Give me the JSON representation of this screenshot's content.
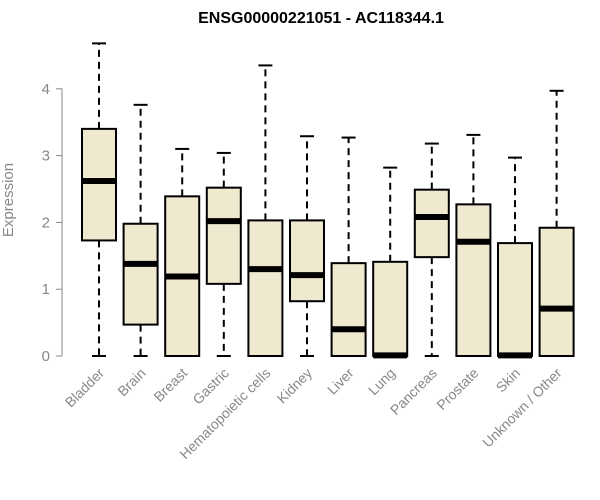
{
  "chart_data": {
    "type": "boxplot",
    "title": "ENSG00000221051 - AC118344.1",
    "xlabel": "",
    "ylabel": "Expression",
    "ylim": [
      0,
      4.75
    ],
    "yticks": [
      0,
      1,
      2,
      3,
      4
    ],
    "grid": false,
    "legend": "none",
    "colors": {
      "box_fill": "#efe9cf",
      "box_stroke": "#000000",
      "axis": "#888888"
    },
    "categories": [
      "Bladder",
      "Brain",
      "Breast",
      "Gastric",
      "Hematopoietic cells",
      "Kidney",
      "Liver",
      "Lung",
      "Pancreas",
      "Prostate",
      "Skin",
      "Unknown / Other"
    ],
    "boxes": [
      {
        "min": 0,
        "q1": 1.73,
        "median": 2.62,
        "q3": 3.4,
        "max": 4.68
      },
      {
        "min": 0,
        "q1": 0.47,
        "median": 1.38,
        "q3": 1.98,
        "max": 3.76
      },
      {
        "min": 0,
        "q1": 0,
        "median": 1.19,
        "q3": 2.39,
        "max": 3.1
      },
      {
        "min": 0,
        "q1": 1.08,
        "median": 2.02,
        "q3": 2.52,
        "max": 3.04
      },
      {
        "min": 0,
        "q1": 0,
        "median": 1.3,
        "q3": 2.03,
        "max": 4.35
      },
      {
        "min": 0,
        "q1": 0.82,
        "median": 1.21,
        "q3": 2.03,
        "max": 3.29
      },
      {
        "min": 0,
        "q1": 0,
        "median": 0.4,
        "q3": 1.39,
        "max": 3.27
      },
      {
        "min": 0,
        "q1": 0,
        "median": 0.01,
        "q3": 1.41,
        "max": 2.82
      },
      {
        "min": 0,
        "q1": 1.48,
        "median": 2.08,
        "q3": 2.49,
        "max": 3.18
      },
      {
        "min": 0,
        "q1": 0,
        "median": 1.71,
        "q3": 2.27,
        "max": 3.31
      },
      {
        "min": 0,
        "q1": 0,
        "median": 0.01,
        "q3": 1.69,
        "max": 2.97
      },
      {
        "min": 0,
        "q1": 0,
        "median": 0.71,
        "q3": 1.92,
        "max": 3.97
      }
    ]
  }
}
